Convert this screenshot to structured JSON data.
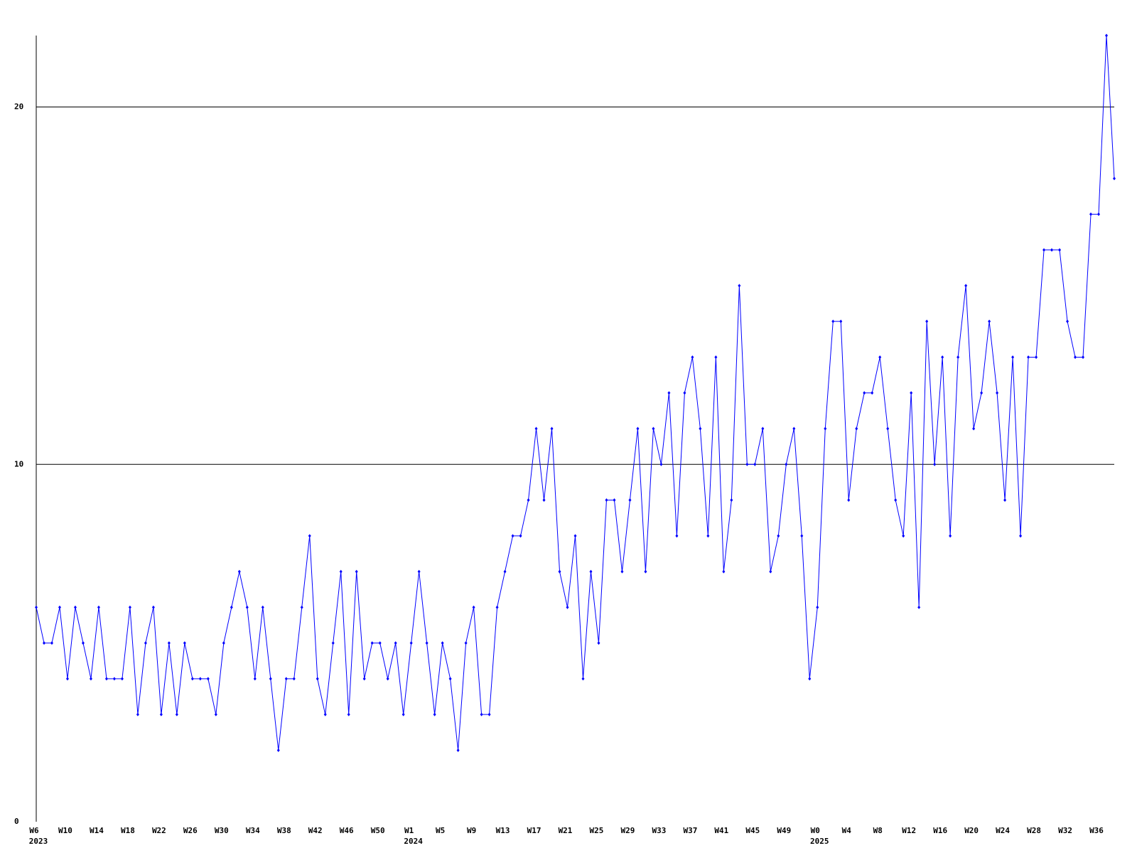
{
  "chart_data": {
    "type": "line",
    "categories": [
      "W6",
      null,
      null,
      null,
      "W10",
      null,
      null,
      null,
      "W14",
      null,
      null,
      null,
      "W18",
      null,
      null,
      null,
      "W22",
      null,
      null,
      null,
      "W26",
      null,
      null,
      null,
      "W30",
      null,
      null,
      null,
      "W34",
      null,
      null,
      null,
      "W38",
      null,
      null,
      null,
      "W42",
      null,
      null,
      null,
      "W46",
      null,
      null,
      null,
      "W50",
      null,
      null,
      null,
      "W1",
      null,
      null,
      null,
      "W5",
      null,
      null,
      null,
      "W9",
      null,
      null,
      null,
      "W13",
      null,
      null,
      null,
      "W17",
      null,
      null,
      null,
      "W21",
      null,
      null,
      null,
      "W25",
      null,
      null,
      null,
      "W29",
      null,
      null,
      null,
      "W33",
      null,
      null,
      null,
      "W37",
      null,
      null,
      null,
      "W41",
      null,
      null,
      null,
      "W45",
      null,
      null,
      null,
      "W49",
      null,
      null,
      null,
      "W0",
      null,
      null,
      null,
      "W4",
      null,
      null,
      null,
      "W8",
      null,
      null,
      null,
      "W12",
      null,
      null,
      null,
      "W16",
      null,
      null,
      null,
      "W20",
      null,
      null,
      null,
      "W24",
      null,
      null,
      null,
      "W28",
      null,
      null,
      null,
      "W32",
      null,
      null,
      null,
      "W36",
      null,
      null
    ],
    "group_labels": [
      {
        "category_index": 0,
        "label": "2023"
      },
      {
        "category_index": 48,
        "label": "2024"
      },
      {
        "category_index": 100,
        "label": "2025"
      }
    ],
    "series": [
      {
        "color": "#0000ff",
        "values": [
          6,
          5,
          5,
          6,
          4,
          6,
          5,
          4,
          6,
          4,
          4,
          4,
          6,
          3,
          5,
          6,
          3,
          5,
          3,
          5,
          4,
          4,
          4,
          3,
          5,
          6,
          7,
          6,
          4,
          6,
          4,
          2,
          4,
          4,
          6,
          8,
          4,
          3,
          5,
          7,
          3,
          7,
          4,
          5,
          5,
          4,
          5,
          3,
          5,
          7,
          5,
          3,
          5,
          4,
          2,
          5,
          6,
          3,
          3,
          6,
          7,
          8,
          8,
          9,
          11,
          9,
          11,
          7,
          6,
          8,
          4,
          7,
          5,
          9,
          9,
          7,
          9,
          11,
          7,
          11,
          10,
          12,
          8,
          12,
          13,
          11,
          8,
          13,
          7,
          9,
          15,
          10,
          10,
          11,
          7,
          8,
          10,
          11,
          8,
          4,
          6,
          11,
          14,
          14,
          9,
          11,
          12,
          12,
          13,
          11,
          9,
          8,
          12,
          6,
          14,
          10,
          13,
          8,
          13,
          15,
          11,
          12,
          14,
          12,
          9,
          13,
          8,
          13,
          13,
          16,
          16,
          16,
          14,
          13,
          13,
          17,
          17,
          22,
          18
        ]
      }
    ],
    "ylim": [
      0,
      22
    ],
    "yticks": [
      0,
      10,
      20
    ],
    "grid": true
  }
}
